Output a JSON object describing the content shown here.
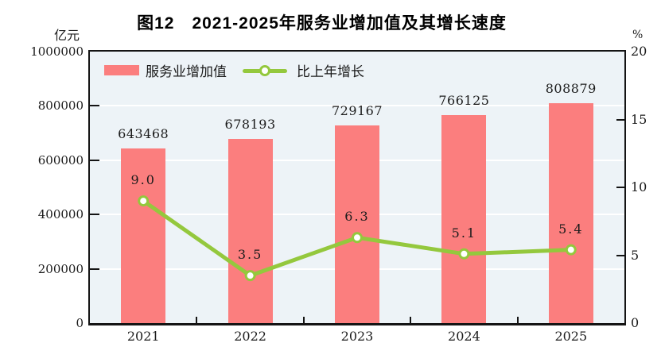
{
  "title": "图12　2021-2025年服务业增加值及其增长速度",
  "chart_data": {
    "type": "combo",
    "categories": [
      "2021",
      "2022",
      "2023",
      "2024",
      "2025"
    ],
    "series": [
      {
        "name": "服务业增加值",
        "type": "bar",
        "axis": "left",
        "values": [
          643468,
          678193,
          729167,
          766125,
          808879
        ],
        "labels": [
          "643468",
          "678193",
          "729167",
          "766125",
          "808879"
        ],
        "color": "#FB7E7E"
      },
      {
        "name": "比上年增长",
        "type": "line",
        "axis": "right",
        "values": [
          9.0,
          3.5,
          6.3,
          5.1,
          5.4
        ],
        "labels": [
          "9.0",
          "3.5",
          "6.3",
          "5.1",
          "5.4"
        ],
        "color": "#94C83D",
        "marker_fill": "#FFFFFF",
        "marker_stroke": "#94C83D"
      }
    ],
    "left_axis": {
      "unit": "亿元",
      "min": 0,
      "max": 1000000,
      "tick_step": 200000,
      "tick_labels": [
        "0",
        "200000",
        "400000",
        "600000",
        "800000",
        "1000000"
      ]
    },
    "right_axis": {
      "unit": "%",
      "min": 0,
      "max": 20,
      "tick_step": 5,
      "tick_labels": [
        "0",
        "5",
        "10",
        "15",
        "20"
      ]
    },
    "grid": {
      "horizontal": true,
      "color": "#FFFFFF"
    },
    "legend_position": "top-left-inside",
    "plot_background": "#EDF3F7",
    "frame_color": "#141414"
  }
}
